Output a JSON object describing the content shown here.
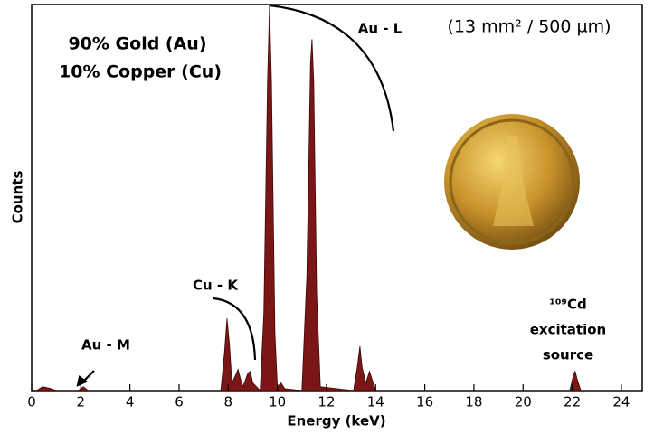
{
  "chart_data": {
    "type": "area",
    "x_label": "Energy (keV)",
    "y_label": "Counts",
    "annotations": [
      "90% Gold (Au)",
      "10% Copper (Cu)",
      "Au - L",
      "(13 mm² / 500 µm)",
      "Cu - K",
      "Au - M",
      "¹⁰⁹Cd",
      "excitation",
      "source"
    ],
    "color": "#7a1616",
    "x": [
      0.2,
      0.45,
      0.6,
      0.8,
      1.0,
      1.9,
      2.1,
      2.3,
      7.7,
      7.85,
      7.95,
      8.05,
      8.15,
      8.3,
      8.4,
      8.5,
      8.6,
      8.8,
      8.9,
      9.0,
      9.3,
      9.45,
      9.6,
      9.68,
      9.76,
      9.9,
      10.0,
      10.15,
      10.3,
      11.0,
      11.2,
      11.35,
      11.41,
      11.48,
      11.6,
      11.75,
      13.1,
      13.25,
      13.36,
      13.45,
      13.6,
      13.75,
      13.85,
      14.0,
      21.9,
      22.05,
      22.12,
      22.2,
      22.35,
      24.8
    ],
    "values": [
      0,
      1,
      0.8,
      0.5,
      0,
      0,
      1,
      0,
      0,
      10,
      18.7,
      12,
      2,
      4,
      5.5,
      3,
      1,
      4.5,
      5,
      2,
      0,
      20,
      80,
      100,
      80,
      15,
      1,
      2,
      0.5,
      0,
      30,
      85,
      91,
      80,
      25,
      1,
      0,
      6,
      11.5,
      6,
      2,
      5,
      3,
      0,
      0,
      4,
      5,
      3,
      0,
      0
    ],
    "xlim": [
      0,
      24.85
    ],
    "ylim": [
      0,
      100
    ],
    "xticks": [
      0,
      2,
      4,
      6,
      8,
      10,
      12,
      14,
      16,
      18,
      20,
      22,
      24
    ]
  }
}
